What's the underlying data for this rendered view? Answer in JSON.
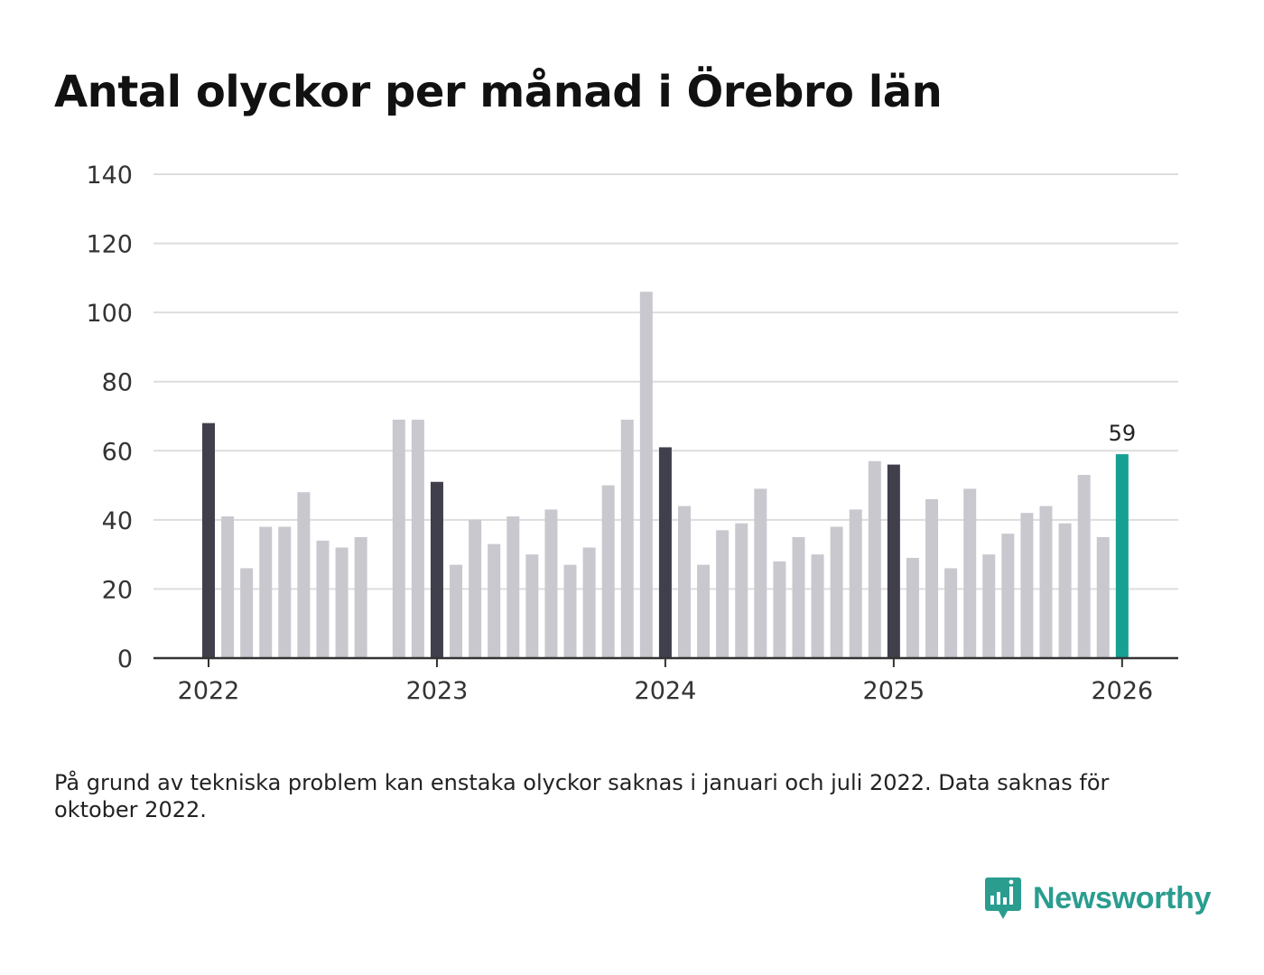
{
  "chart_data": {
    "type": "bar",
    "title": "Antal olyckor per månad i Örebro län",
    "xlabel": "",
    "ylabel": "",
    "ylim": [
      0,
      140
    ],
    "yticks": [
      0,
      20,
      40,
      60,
      80,
      100,
      120,
      140
    ],
    "x_tick_labels": [
      "2022",
      "2023",
      "2024",
      "2025",
      "2026"
    ],
    "x_tick_indices": [
      0,
      12,
      24,
      36,
      48
    ],
    "grid": true,
    "legend": "none",
    "highlight_label": "59",
    "colors": {
      "january": "#403f4c",
      "other": "#c9c8cf",
      "latest": "#16a092",
      "grid": "#dddddd",
      "axis": "#333333"
    },
    "categories": [
      "2022-01",
      "2022-02",
      "2022-03",
      "2022-04",
      "2022-05",
      "2022-06",
      "2022-07",
      "2022-08",
      "2022-09",
      "2022-10",
      "2022-11",
      "2022-12",
      "2023-01",
      "2023-02",
      "2023-03",
      "2023-04",
      "2023-05",
      "2023-06",
      "2023-07",
      "2023-08",
      "2023-09",
      "2023-10",
      "2023-11",
      "2023-12",
      "2024-01",
      "2024-02",
      "2024-03",
      "2024-04",
      "2024-05",
      "2024-06",
      "2024-07",
      "2024-08",
      "2024-09",
      "2024-10",
      "2024-11",
      "2024-12",
      "2025-01",
      "2025-02",
      "2025-03",
      "2025-04",
      "2025-05",
      "2025-06",
      "2025-07",
      "2025-08",
      "2025-09",
      "2025-10",
      "2025-11",
      "2025-12",
      "2026-01"
    ],
    "values": [
      68,
      41,
      26,
      38,
      38,
      48,
      34,
      32,
      35,
      null,
      69,
      69,
      51,
      27,
      40,
      33,
      41,
      30,
      43,
      27,
      32,
      50,
      69,
      106,
      61,
      44,
      27,
      37,
      39,
      49,
      28,
      35,
      30,
      38,
      43,
      57,
      56,
      29,
      46,
      26,
      49,
      30,
      36,
      42,
      44,
      39,
      53,
      35,
      59
    ]
  },
  "footnote": "På grund av tekniska problem kan enstaka olyckor saknas i januari och juli 2022. Data saknas för oktober 2022.",
  "brand": {
    "name": "Newsworthy",
    "icon": "newsworthy-logo-icon",
    "color": "#2a9d8f"
  }
}
